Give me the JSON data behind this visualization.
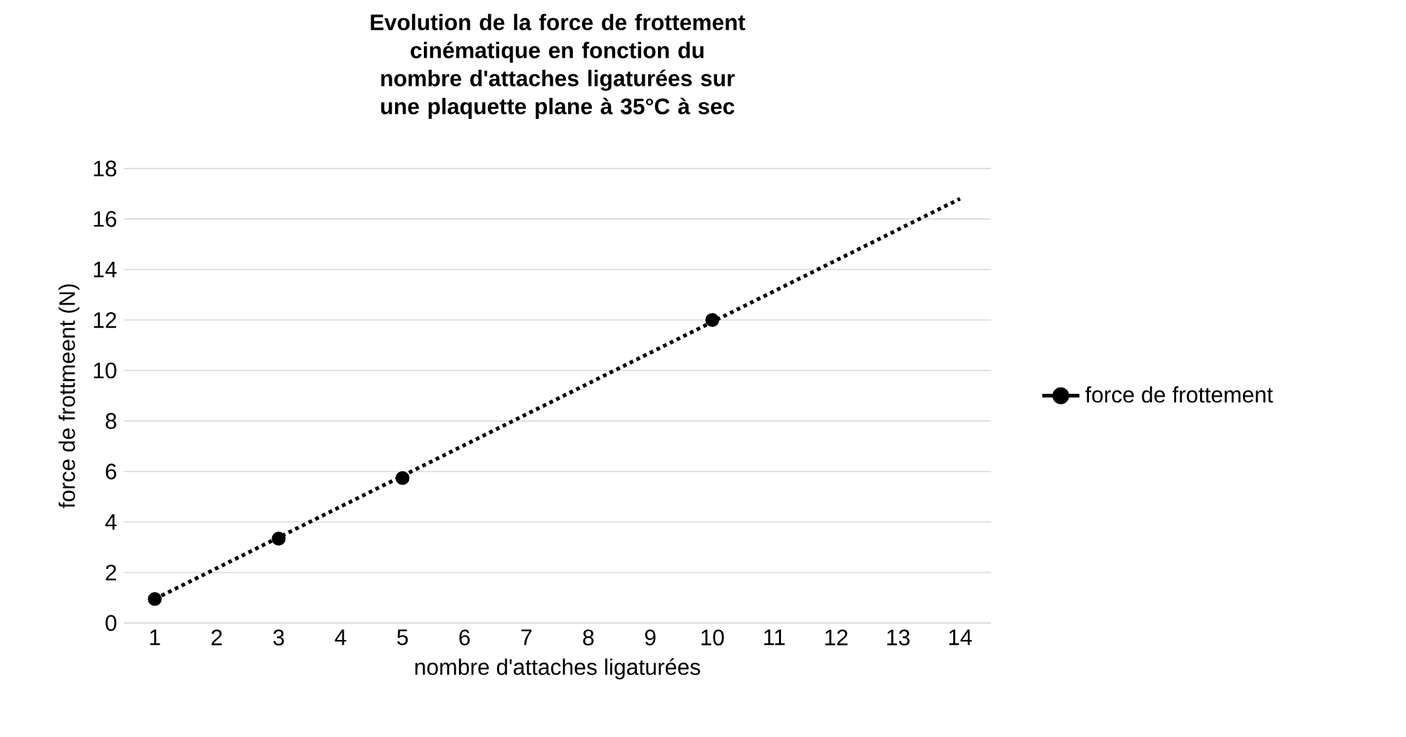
{
  "chart_data": {
    "type": "scatter",
    "title": "Evolution de la force de frottement cinématique en fonction du nombre d'attaches ligaturées sur une plaquette plane à 35°C à sec",
    "xlabel": "nombre d'attaches ligaturées",
    "ylabel": "force de frottmeent (N)",
    "xlim": [
      0.5,
      14.5
    ],
    "xticks": [
      1,
      2,
      3,
      4,
      5,
      6,
      7,
      8,
      9,
      10,
      11,
      12,
      13,
      14
    ],
    "ylim": [
      0,
      18
    ],
    "yticks": [
      0,
      2,
      4,
      6,
      8,
      10,
      12,
      14,
      16,
      18
    ],
    "grid": "y",
    "legend": "right",
    "series": [
      {
        "name": "force de frottement",
        "color": "#000000",
        "x": [
          1,
          3,
          5,
          10
        ],
        "values": [
          0.95,
          3.34,
          5.74,
          12
        ],
        "marker": "circle"
      },
      {
        "type": "line",
        "color": "#000000",
        "x": [
          1,
          14
        ],
        "values": [
          0.95,
          16.8
        ],
        "line_style": "dotted",
        "marker": "none"
      }
    ]
  }
}
